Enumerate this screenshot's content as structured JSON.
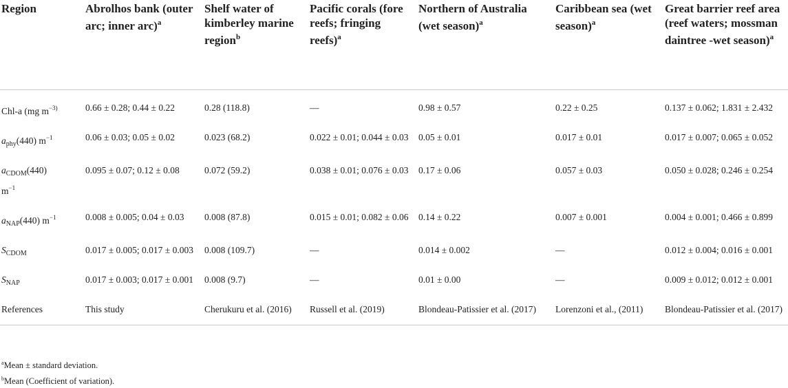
{
  "header": {
    "region": "Region",
    "abrolhos": "Abrolhos bank (outer arc; inner arc)",
    "abrolhos_mark": "a",
    "kimberley": "Shelf water of kimberley marine region",
    "kimberley_mark": "b",
    "pacific": "Pacific corals (fore reefs; fringing reefs)",
    "pacific_mark": "a",
    "northern": "Northern of Australia (wet season)",
    "northern_mark": "a",
    "caribbean": "Caribbean sea (wet season)",
    "caribbean_mark": "a",
    "gbr": "Great barrier reef area (reef waters; mossman daintree -wet season)",
    "gbr_mark": "a"
  },
  "labels": {
    "chla_a": "Chl-a (mg m",
    "chla_exp": "−3)",
    "chla_b": "",
    "aphy_a": "a",
    "aphy_sub": "phy",
    "aphy_b": "(440) m",
    "aphy_exp": "−1",
    "acdom_a": "a",
    "acdom_sub": "CDOM",
    "acdom_b": "(440)",
    "acdom_c": "m",
    "acdom_exp": "−1",
    "anap_a": "a",
    "anap_sub": "NAP",
    "anap_b": "(440) m",
    "anap_exp": "−1",
    "scdom_a": "S",
    "scdom_sub": "CDOM",
    "snap_a": "S",
    "snap_sub": "NAP",
    "refs": "References"
  },
  "rows": [
    [
      "0.66 ± 0.28; 0.44 ± 0.22",
      "0.28 (118.8)",
      "—",
      "0.98 ± 0.57",
      "0.22 ± 0.25",
      "0.137 ± 0.062; 1.831 ± 2.432"
    ],
    [
      "0.06 ± 0.03; 0.05 ± 0.02",
      "0.023 (68.2)",
      "0.022 ± 0.01; 0.044 ± 0.03",
      "0.05 ± 0.01",
      "0.017 ± 0.01",
      "0.017 ± 0.007; 0.065 ± 0.052"
    ],
    [
      "0.095 ± 0.07; 0.12 ± 0.08",
      "0.072 (59.2)",
      "0.038 ± 0.01; 0.076 ± 0.03",
      "0.17 ± 0.06",
      "0.057 ± 0.03",
      "0.050 ± 0.028; 0.246 ± 0.254"
    ],
    [
      "0.008 ± 0.005; 0.04 ± 0.03",
      "0.008 (87.8)",
      "0.015 ± 0.01; 0.082 ± 0.06",
      "0.14 ± 0.22",
      "0.007 ± 0.001",
      "0.004 ± 0.001; 0.466 ± 0.899"
    ],
    [
      "0.017 ± 0.005; 0.017 ± 0.003",
      "0.008 (109.7)",
      "—",
      "0.014 ± 0.002",
      "—",
      "0.012 ± 0.004; 0.016 ± 0.001"
    ],
    [
      "0.017 ± 0.003; 0.017 ± 0.001",
      "0.008 (9.7)",
      "—",
      "0.01 ± 0.00",
      "—",
      "0.009 ± 0.012; 0.012 ± 0.001"
    ],
    [
      "This study",
      "Cherukuru et al. (2016)",
      "Russell et al. (2019)",
      "Blondeau-Patissier et al. (2017)",
      "Lorenzoni et al., (2011)",
      "Blondeau-Patissier et al. (2017)"
    ]
  ],
  "notes": {
    "a_mark": "a",
    "a_text": "Mean ± standard deviation.",
    "b_mark": "b",
    "b_text": "Mean (Coefficient of variation)."
  }
}
